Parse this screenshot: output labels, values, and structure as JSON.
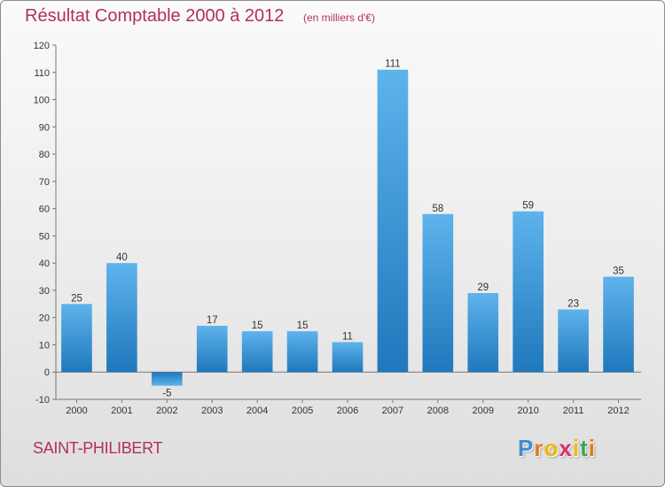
{
  "chart_data": {
    "type": "bar",
    "title": "Résultat Comptable 2000 à 2012",
    "subtitle": "(en milliers d'€)",
    "xlabel": "",
    "ylabel": "",
    "categories": [
      "2000",
      "2001",
      "2002",
      "2003",
      "2004",
      "2005",
      "2006",
      "2007",
      "2008",
      "2009",
      "2010",
      "2011",
      "2012"
    ],
    "values": [
      25,
      40,
      -5,
      17,
      15,
      15,
      11,
      111,
      58,
      29,
      59,
      23,
      35
    ],
    "ylim": [
      -10,
      120
    ],
    "yticks": [
      -10,
      0,
      10,
      20,
      30,
      40,
      50,
      60,
      70,
      80,
      90,
      100,
      110,
      120
    ],
    "grid": false,
    "colors": {
      "bar_top": "#5eb3ec",
      "bar_bottom": "#1f78bc",
      "text": "#b3305a"
    }
  },
  "location_name": "SAINT-PHILIBERT",
  "logo": {
    "letters": [
      "P",
      "r",
      "o",
      "x",
      "i",
      "t",
      "i"
    ],
    "colors": [
      "#3a8fd4",
      "#e07a1f",
      "#f2b705",
      "#d6336c",
      "#f2b705",
      "#3aa655",
      "#e07a1f"
    ]
  }
}
